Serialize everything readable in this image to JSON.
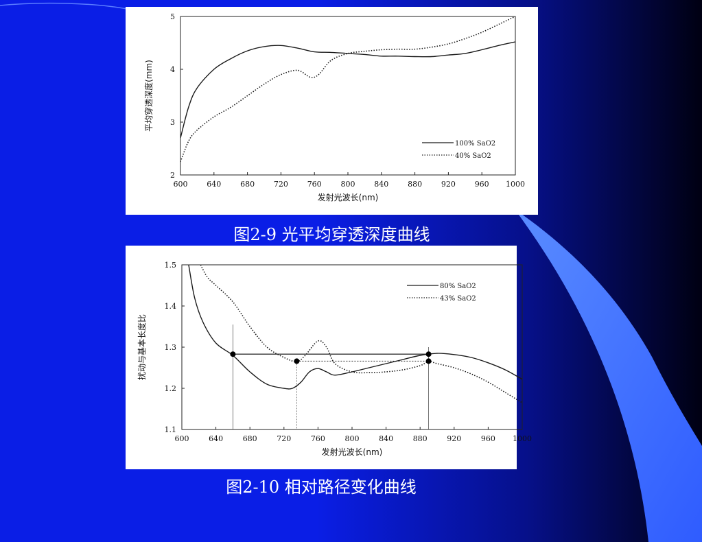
{
  "slide": {
    "background": {
      "main": "#0a1ee6",
      "dark": "#000012",
      "accent": "#3366ff"
    }
  },
  "figures": [
    {
      "caption": "图2-9  光平均穿透深度曲线"
    },
    {
      "caption": "图2-10  相对路径变化曲线"
    }
  ],
  "chart_data": [
    {
      "type": "line",
      "title": "",
      "xlabel": "发射光波长(nm)",
      "ylabel": "平均穿透深度(mm)",
      "xlim": [
        600,
        1000
      ],
      "ylim": [
        2,
        5
      ],
      "xticks": [
        600,
        640,
        680,
        720,
        760,
        800,
        840,
        880,
        920,
        960,
        1000
      ],
      "yticks": [
        2,
        3,
        4,
        5
      ],
      "legend_position": "bottom-right",
      "series": [
        {
          "name": "100% SaO2",
          "style": "solid",
          "x": [
            600,
            610,
            620,
            640,
            660,
            680,
            700,
            720,
            740,
            760,
            780,
            800,
            820,
            840,
            860,
            880,
            900,
            920,
            940,
            960,
            980,
            1000
          ],
          "y": [
            2.7,
            3.3,
            3.65,
            4.0,
            4.2,
            4.35,
            4.43,
            4.45,
            4.4,
            4.33,
            4.32,
            4.3,
            4.28,
            4.25,
            4.25,
            4.24,
            4.24,
            4.27,
            4.3,
            4.37,
            4.45,
            4.52
          ]
        },
        {
          "name": "40% SaO2",
          "style": "dotted",
          "x": [
            600,
            610,
            620,
            640,
            660,
            680,
            700,
            720,
            740,
            755,
            765,
            780,
            800,
            820,
            840,
            860,
            880,
            900,
            920,
            940,
            960,
            980,
            1000
          ],
          "y": [
            2.25,
            2.65,
            2.85,
            3.1,
            3.28,
            3.5,
            3.72,
            3.9,
            3.98,
            3.85,
            3.9,
            4.17,
            4.3,
            4.34,
            4.37,
            4.38,
            4.38,
            4.42,
            4.48,
            4.58,
            4.7,
            4.85,
            5.0
          ]
        }
      ]
    },
    {
      "type": "line",
      "title": "",
      "xlabel": "发射光波长(nm)",
      "ylabel": "扰动与基本长度比",
      "xlim": [
        600,
        1000
      ],
      "ylim": [
        1.1,
        1.5
      ],
      "xticks": [
        600,
        640,
        680,
        720,
        760,
        800,
        840,
        880,
        920,
        960,
        1000
      ],
      "yticks": [
        1.1,
        1.2,
        1.3,
        1.4,
        1.5
      ],
      "legend_position": "top-right",
      "series": [
        {
          "name": "80% SaO2",
          "style": "solid",
          "x": [
            608,
            615,
            625,
            640,
            660,
            680,
            700,
            720,
            730,
            740,
            750,
            760,
            770,
            780,
            800,
            820,
            840,
            860,
            880,
            900,
            920,
            940,
            960,
            980,
            1000
          ],
          "y": [
            1.5,
            1.42,
            1.36,
            1.31,
            1.28,
            1.24,
            1.21,
            1.2,
            1.2,
            1.215,
            1.24,
            1.248,
            1.24,
            1.232,
            1.24,
            1.25,
            1.26,
            1.27,
            1.28,
            1.285,
            1.282,
            1.275,
            1.262,
            1.245,
            1.222
          ]
        },
        {
          "name": "43% SaO2",
          "style": "dotted",
          "x": [
            622,
            630,
            640,
            660,
            680,
            700,
            720,
            735,
            745,
            760,
            770,
            780,
            800,
            820,
            840,
            860,
            880,
            890,
            900,
            920,
            940,
            960,
            980,
            1000
          ],
          "y": [
            1.5,
            1.47,
            1.45,
            1.41,
            1.35,
            1.3,
            1.275,
            1.265,
            1.28,
            1.315,
            1.3,
            1.26,
            1.24,
            1.238,
            1.24,
            1.245,
            1.255,
            1.265,
            1.26,
            1.25,
            1.235,
            1.215,
            1.19,
            1.165
          ]
        }
      ],
      "guides": [
        {
          "style": "solid",
          "from": [
            660,
            1.283
          ],
          "to": [
            890,
            1.283
          ]
        },
        {
          "style": "dotted",
          "from": [
            735,
            1.266
          ],
          "to": [
            890,
            1.266
          ]
        }
      ],
      "verticals": [
        {
          "x": 660,
          "y_top": 1.355,
          "style": "solid"
        },
        {
          "x": 735,
          "y_top": 1.266,
          "style": "dotted"
        },
        {
          "x": 890,
          "y_top": 1.3,
          "style": "solid"
        }
      ],
      "markers": [
        {
          "x": 660,
          "y": 1.283
        },
        {
          "x": 735,
          "y": 1.266
        },
        {
          "x": 890,
          "y": 1.283
        },
        {
          "x": 890,
          "y": 1.266
        }
      ]
    }
  ]
}
